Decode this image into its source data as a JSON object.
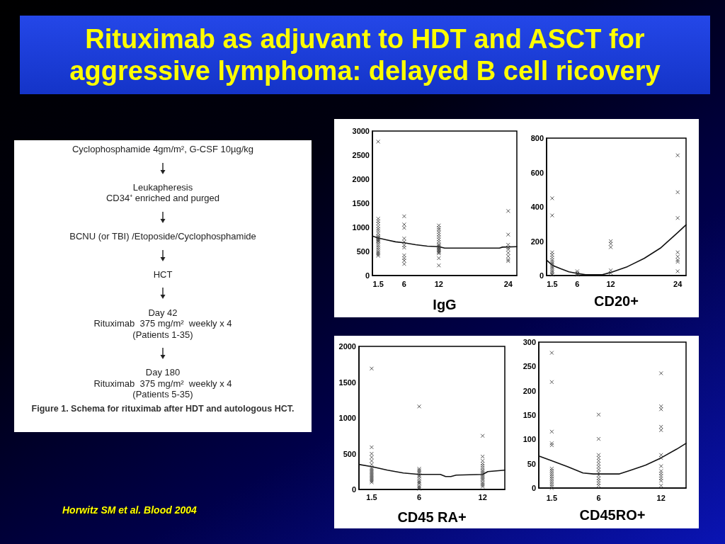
{
  "chart_data": [
    {
      "type": "other",
      "title": "Rituximab as adjuvant to HDT and ASCT for aggressive lymphoma: delayed B cell ricovery",
      "annotations": [
        "Horwitz SM et al. Blood 2004"
      ]
    },
    {
      "type": "other",
      "title": "Figure 1. Schema for rituximab after HDT and autologous HCT.",
      "annotations": [
        "Cyclophosphamide 4gm/m², G-CSF 10µg/kg",
        "Leukapheresis\nCD34⁺ enriched and purged",
        "BCNU (or TBI) /Etoposide/Cyclophosphamide",
        "HCT",
        "Day 42\nRituximab  375 mg/m²  weekly x 4\n(Patients 1-35)",
        "Day 180\nRituximab  375 mg/m²  weekly x 4\n(Patients 5-35)"
      ]
    },
    {
      "type": "scatter",
      "xlabel": "IgG",
      "xlim": [
        0.5,
        25.5
      ],
      "xticks": [
        1.5,
        6,
        12,
        24
      ],
      "ylim": [
        0,
        3000
      ],
      "yticks": [
        0,
        500,
        1000,
        1500,
        2000,
        2500,
        3000
      ],
      "marker": "cross",
      "series": [
        {
          "type": "scatter",
          "color": "#333333",
          "x": [
            1.5,
            1.5,
            1.5,
            1.5,
            1.5,
            1.5,
            1.5,
            1.5,
            1.5,
            1.5,
            1.5,
            1.5,
            1.5,
            1.5,
            1.5,
            1.5,
            1.5,
            1.5,
            1.5,
            1.5,
            1.5,
            1.5,
            1.5,
            6,
            6,
            6,
            6,
            6,
            6,
            6,
            6,
            6,
            6,
            6,
            12,
            12,
            12,
            12,
            12,
            12,
            12,
            12,
            12,
            12,
            12,
            12,
            12,
            12,
            12,
            12,
            12,
            12,
            12,
            12,
            24,
            24,
            24,
            24,
            24,
            24,
            24,
            24,
            24
          ],
          "values": [
            2780,
            1180,
            1130,
            1080,
            1020,
            970,
            930,
            880,
            830,
            800,
            780,
            760,
            740,
            720,
            700,
            660,
            620,
            580,
            540,
            500,
            470,
            440,
            410,
            1230,
            1060,
            990,
            770,
            700,
            630,
            580,
            420,
            360,
            310,
            240,
            1040,
            990,
            950,
            900,
            850,
            800,
            750,
            700,
            650,
            620,
            600,
            580,
            560,
            540,
            520,
            500,
            480,
            460,
            360,
            210,
            1340,
            850,
            640,
            580,
            540,
            470,
            400,
            330,
            300
          ]
        },
        {
          "type": "line",
          "color": "#111111",
          "marker": "none",
          "x": [
            0.5,
            1.5,
            3,
            4.5,
            6,
            8,
            10,
            12,
            13,
            20,
            22.5,
            23,
            25.5
          ],
          "values": [
            820,
            780,
            740,
            700,
            680,
            640,
            610,
            600,
            570,
            570,
            570,
            590,
            600
          ]
        }
      ]
    },
    {
      "type": "scatter",
      "xlabel": "CD20+",
      "xlim": [
        0.5,
        25.5
      ],
      "xticks": [
        1.5,
        6,
        12,
        24
      ],
      "ylim": [
        0,
        800
      ],
      "yticks": [
        0,
        200,
        400,
        600,
        800
      ],
      "marker": "cross",
      "series": [
        {
          "type": "scatter",
          "color": "#333333",
          "x": [
            1.5,
            1.5,
            1.5,
            1.5,
            1.5,
            1.5,
            1.5,
            1.5,
            1.5,
            1.5,
            1.5,
            1.5,
            1.5,
            1.5,
            1.5,
            6,
            6,
            6,
            6,
            12,
            12,
            12,
            12,
            12,
            24,
            24,
            24,
            24,
            24,
            24,
            24,
            24
          ],
          "values": [
            450,
            350,
            135,
            120,
            105,
            90,
            80,
            70,
            60,
            50,
            40,
            30,
            20,
            10,
            5,
            25,
            15,
            10,
            5,
            200,
            185,
            165,
            30,
            15,
            700,
            485,
            335,
            135,
            110,
            90,
            80,
            25
          ]
        },
        {
          "type": "line",
          "color": "#111111",
          "marker": "none",
          "x": [
            0.5,
            1.5,
            3,
            4.5,
            6,
            7.5,
            10.5,
            12,
            15,
            18,
            21,
            24,
            25.5
          ],
          "values": [
            90,
            60,
            40,
            22,
            12,
            5,
            5,
            18,
            52,
            100,
            162,
            250,
            295
          ]
        }
      ]
    },
    {
      "type": "scatter",
      "xlabel": "CD45 RA+",
      "xlim": [
        0.3,
        14.1
      ],
      "xticks": [
        1.5,
        6,
        12
      ],
      "ylim": [
        0,
        2000
      ],
      "yticks": [
        0,
        500,
        1000,
        1500,
        2000
      ],
      "marker": "cross",
      "series": [
        {
          "type": "scatter",
          "color": "#333333",
          "x": [
            1.5,
            1.5,
            1.5,
            1.5,
            1.5,
            1.5,
            1.5,
            1.5,
            1.5,
            1.5,
            1.5,
            1.5,
            1.5,
            1.5,
            1.5,
            1.5,
            1.5,
            6,
            6,
            6,
            6,
            6,
            6,
            6,
            6,
            6,
            6,
            6,
            6,
            6,
            6,
            12,
            12,
            12,
            12,
            12,
            12,
            12,
            12,
            12,
            12,
            12,
            12,
            12,
            12,
            12,
            12,
            12,
            12
          ],
          "values": [
            1690,
            590,
            500,
            450,
            400,
            350,
            300,
            280,
            260,
            240,
            220,
            200,
            180,
            160,
            140,
            120,
            100,
            1160,
            290,
            270,
            250,
            230,
            200,
            180,
            150,
            120,
            100,
            80,
            50,
            30,
            10,
            750,
            460,
            400,
            360,
            330,
            300,
            270,
            250,
            230,
            210,
            190,
            170,
            150,
            130,
            100,
            80,
            60,
            40
          ]
        },
        {
          "type": "line",
          "color": "#111111",
          "marker": "none",
          "x": [
            0.3,
            1.5,
            3,
            4.5,
            6,
            8,
            8.5,
            9,
            9.5,
            12,
            12.5,
            14.1
          ],
          "values": [
            350,
            320,
            270,
            230,
            210,
            210,
            180,
            180,
            200,
            210,
            250,
            270
          ]
        }
      ]
    },
    {
      "type": "scatter",
      "xlabel": "CD45RO+",
      "xlim": [
        0.25,
        14.4
      ],
      "xticks": [
        1.5,
        6,
        12
      ],
      "ylim": [
        0,
        300
      ],
      "yticks": [
        0,
        50,
        100,
        150,
        200,
        250,
        300
      ],
      "marker": "cross",
      "series": [
        {
          "type": "scatter",
          "color": "#333333",
          "x": [
            1.5,
            1.5,
            1.5,
            1.5,
            1.5,
            1.5,
            1.5,
            1.5,
            1.5,
            1.5,
            1.5,
            1.5,
            1.5,
            1.5,
            1.5,
            1.5,
            6,
            6,
            6,
            6,
            6,
            6,
            6,
            6,
            6,
            6,
            6,
            6,
            6,
            6,
            12,
            12,
            12,
            12,
            12,
            12,
            12,
            12,
            12,
            12,
            12,
            12,
            12,
            12
          ],
          "values": [
            278,
            218,
            116,
            92,
            88,
            40,
            36,
            32,
            28,
            24,
            20,
            16,
            12,
            8,
            4,
            0,
            151,
            101,
            68,
            62,
            56,
            50,
            44,
            38,
            32,
            26,
            20,
            15,
            10,
            5,
            236,
            168,
            162,
            126,
            119,
            68,
            62,
            45,
            35,
            30,
            25,
            20,
            15,
            5
          ]
        },
        {
          "type": "line",
          "color": "#111111",
          "marker": "none",
          "x": [
            0.25,
            1.5,
            3,
            4.5,
            5.5,
            8,
            9,
            10.5,
            12,
            13.5,
            14.4
          ],
          "values": [
            66,
            56,
            44,
            31,
            29,
            29,
            36,
            47,
            62,
            80,
            92
          ]
        }
      ]
    }
  ]
}
